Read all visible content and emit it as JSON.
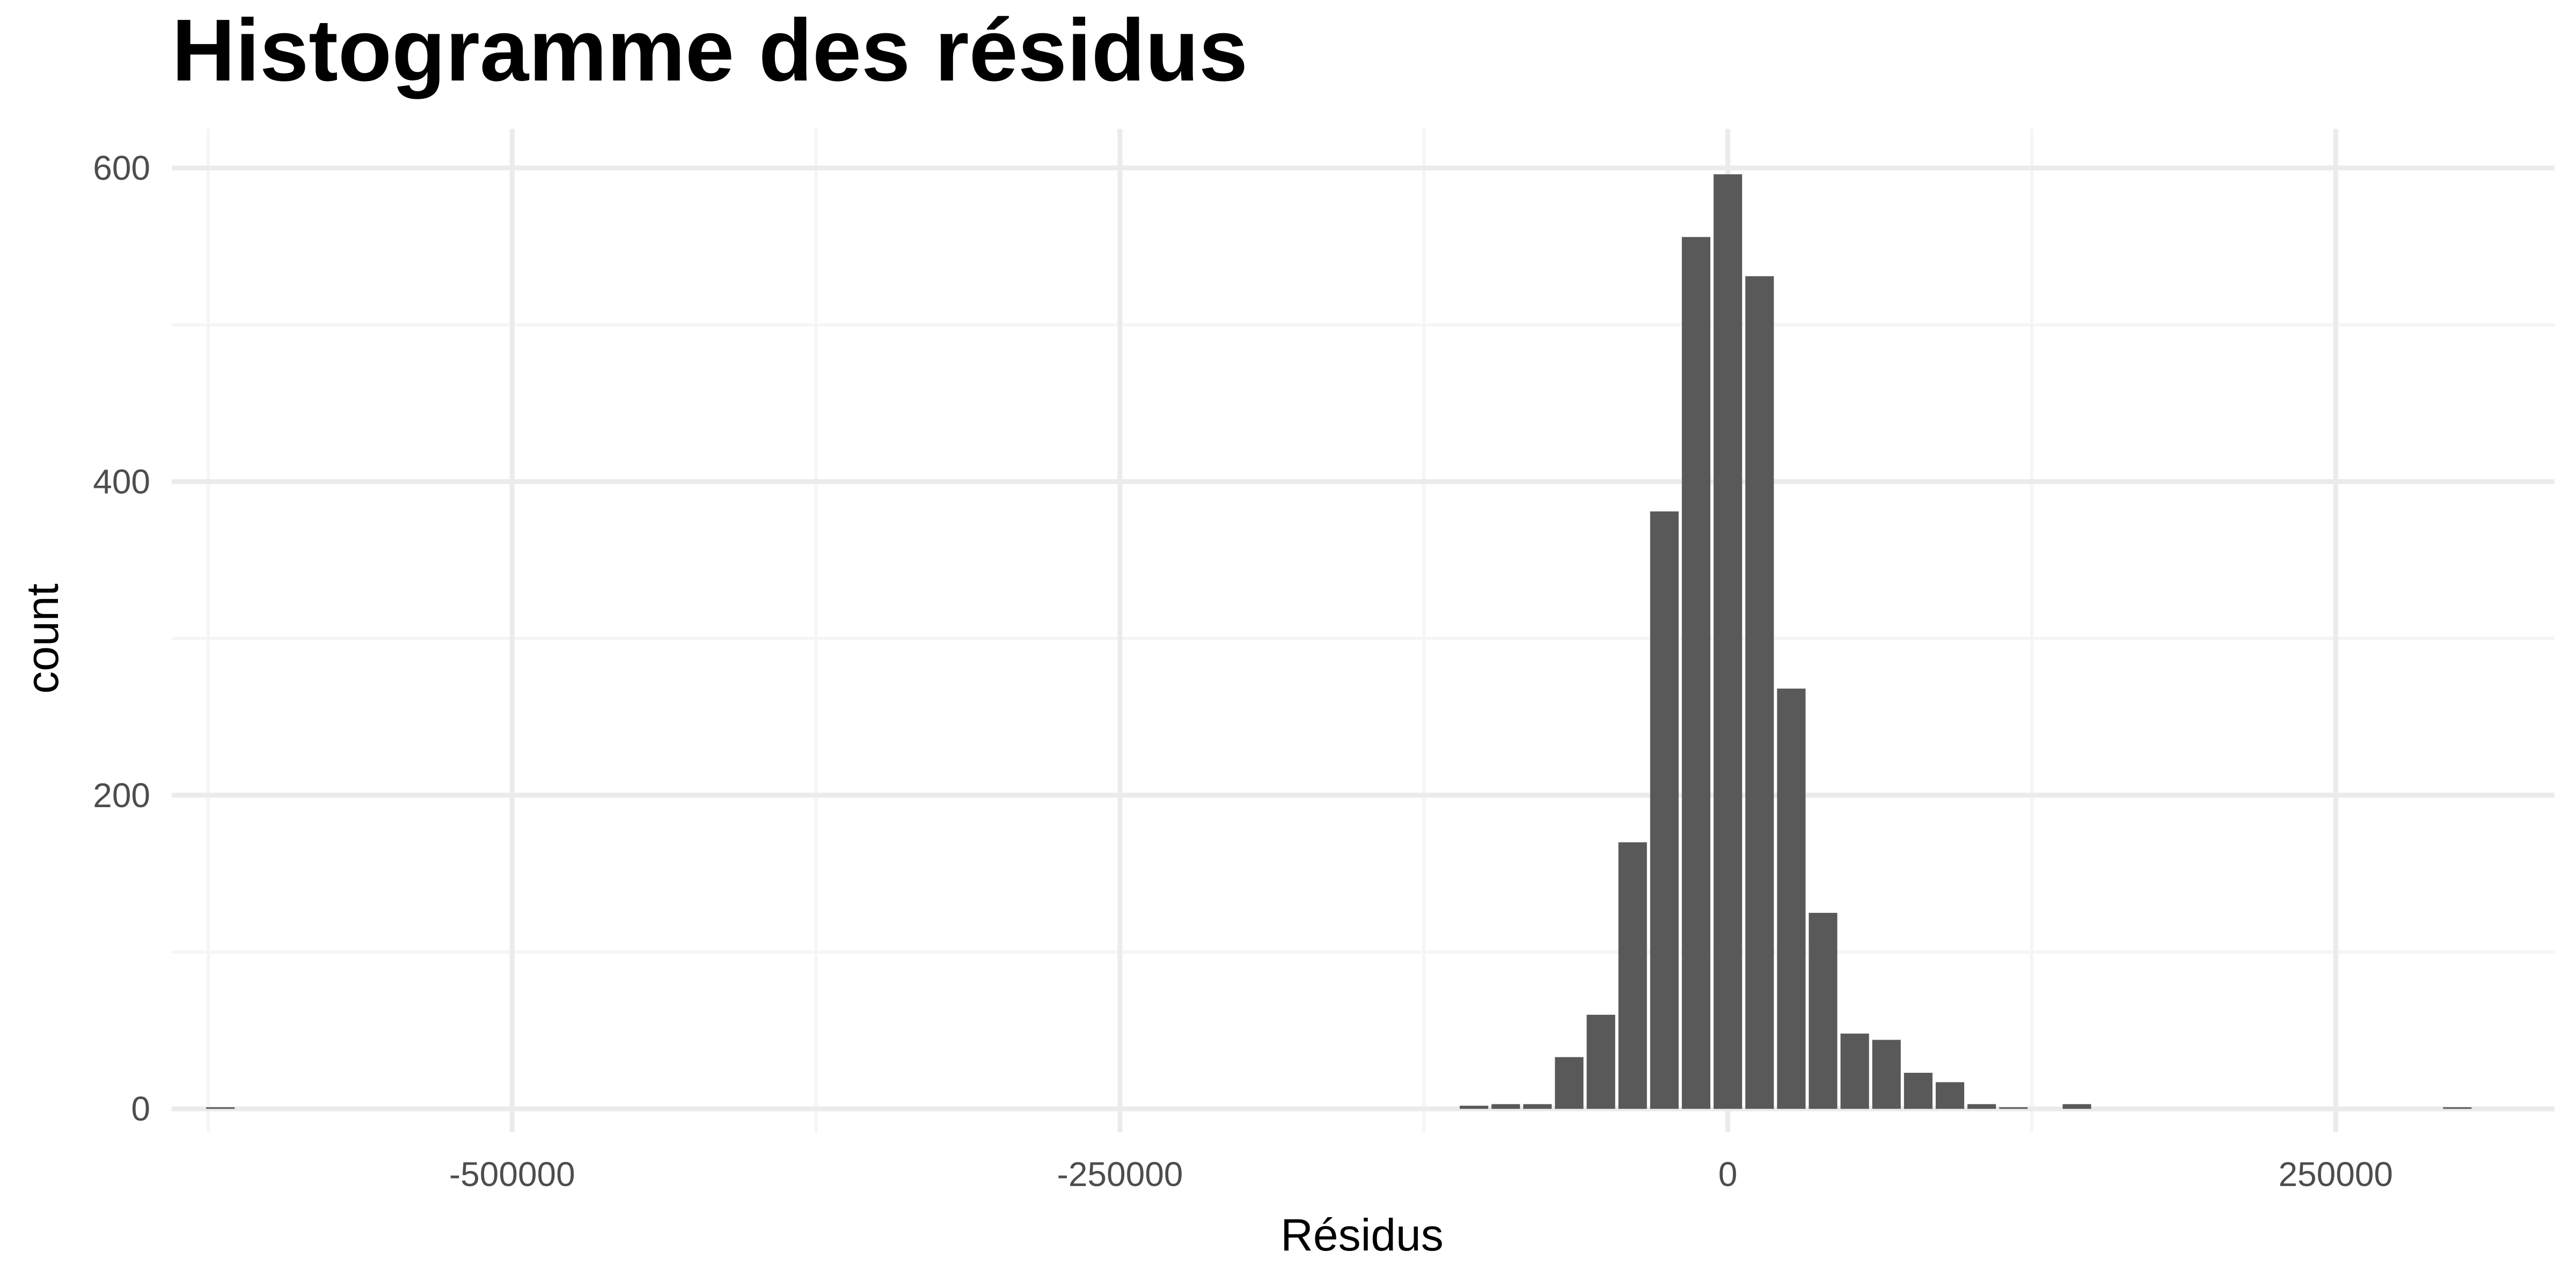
{
  "chart_data": {
    "type": "bar",
    "title": "Histogramme des résidus",
    "xlabel": "Résidus",
    "ylabel": "count",
    "xlim": [
      -640000,
      340000
    ],
    "ylim": [
      -15,
      625
    ],
    "x_ticks": [
      -500000,
      -250000,
      0,
      250000
    ],
    "x_tick_labels": [
      "-500000",
      "-250000",
      "0",
      "250000"
    ],
    "y_ticks": [
      0,
      200,
      400,
      600
    ],
    "y_tick_labels": [
      "0",
      "200",
      "400",
      "600"
    ],
    "x_minor_ticks": [
      -625000,
      -375000,
      -125000,
      125000
    ],
    "y_minor_ticks": [
      100,
      300,
      500
    ],
    "grid": true,
    "legend": "none",
    "bin_width": 13050,
    "bins": [
      {
        "x": -620000,
        "count": 1
      },
      {
        "x": -104400,
        "count": 2
      },
      {
        "x": -91350,
        "count": 3
      },
      {
        "x": -78300,
        "count": 3
      },
      {
        "x": -65250,
        "count": 33
      },
      {
        "x": -52200,
        "count": 60
      },
      {
        "x": -39150,
        "count": 170
      },
      {
        "x": -26100,
        "count": 381
      },
      {
        "x": -13050,
        "count": 556
      },
      {
        "x": 0,
        "count": 596
      },
      {
        "x": 13050,
        "count": 531
      },
      {
        "x": 26100,
        "count": 268
      },
      {
        "x": 39150,
        "count": 125
      },
      {
        "x": 52200,
        "count": 48
      },
      {
        "x": 65250,
        "count": 44
      },
      {
        "x": 78300,
        "count": 23
      },
      {
        "x": 91350,
        "count": 17
      },
      {
        "x": 104400,
        "count": 3
      },
      {
        "x": 117450,
        "count": 1
      },
      {
        "x": 143550,
        "count": 3
      },
      {
        "x": 300000,
        "count": 1
      }
    ],
    "colors": {
      "bar": "#595959",
      "grid_major": "#ebebeb",
      "grid_minor": "#f5f5f5",
      "tick_text": "#4d4d4d"
    }
  }
}
